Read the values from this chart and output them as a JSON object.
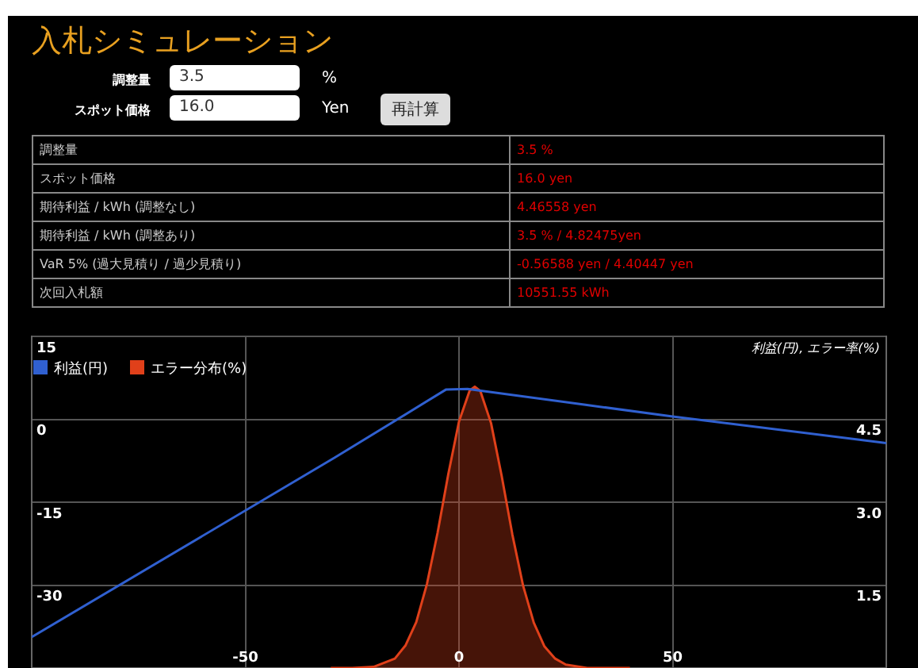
{
  "chart_data": {
    "type": "line",
    "title": "入札シミュレーション",
    "y2label": "利益(円), エラー率(%)",
    "annotations": [
      "調整量",
      "3.5",
      "%",
      "スポット価格",
      "16.0",
      "Yen",
      "再計算",
      "調整量",
      "3.5 %",
      "スポット価格",
      "16.0 yen",
      "期待利益 / kWh (調整なし)",
      "4.46558 yen",
      "期待利益 / kWh (調整あり)",
      "3.5 % / 4.82475yen",
      "VaR 5% (過大見積り / 過少見積り)",
      "-0.56588 yen / 4.40447 yen",
      "次回入札額",
      "10551.55 kWh"
    ],
    "xlim": [
      -100,
      100
    ],
    "xticks": [
      -50,
      0,
      50
    ],
    "ylim": [
      -45,
      15
    ],
    "yticks": [
      15,
      0,
      -15,
      -30
    ],
    "y2lim": [
      0,
      6
    ],
    "y2ticks": [
      4.5,
      {
        "value": 3,
        "label": "3.0"
      },
      1.5
    ],
    "grid": true,
    "legend": "top left",
    "marker": "none",
    "series": [
      {
        "name": "利益(円)",
        "type": "line",
        "color": "#3060d0",
        "x": [
          -100,
          -29,
          -3,
          2,
          50,
          100
        ],
        "values": [
          -39.4,
          -6.9,
          5.4,
          5.5,
          0.5,
          -4.3
        ]
      },
      {
        "name": "エラー分布(%)",
        "type": "area",
        "axis": "y2",
        "color": "#e0401a",
        "x": [
          -30,
          -25,
          -20,
          -15,
          -12.5,
          -10,
          -7.5,
          -5,
          -2.5,
          0,
          2.5,
          3.7,
          5,
          7.5,
          10,
          12.5,
          15,
          17.5,
          20,
          22.5,
          25,
          30,
          35,
          40
        ],
        "values": [
          0,
          0,
          0.02,
          0.17,
          0.41,
          0.83,
          1.52,
          2.45,
          3.51,
          4.46,
          5.02,
          5.09,
          5.01,
          4.43,
          3.47,
          2.41,
          1.49,
          0.82,
          0.39,
          0.17,
          0.06,
          0,
          0,
          0
        ]
      }
    ]
  }
}
